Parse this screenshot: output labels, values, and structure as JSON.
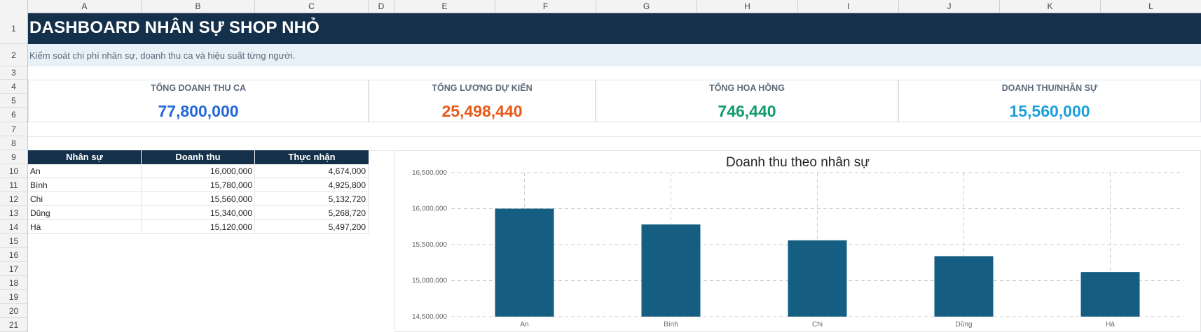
{
  "sheet": {
    "columns": [
      "A",
      "B",
      "C",
      "D",
      "E",
      "F",
      "G",
      "H",
      "I",
      "J",
      "K",
      "L"
    ],
    "rows": [
      "1",
      "2",
      "3",
      "4",
      "5",
      "6",
      "7",
      "8",
      "9",
      "10",
      "11",
      "12",
      "13",
      "14",
      "15",
      "16",
      "17",
      "18",
      "19",
      "20",
      "21"
    ]
  },
  "header": {
    "title": "DASHBOARD NHÂN SỰ SHOP NHỎ",
    "subtitle": "Kiểm soát chi phí nhân sự, doanh thu ca và hiệu suất từng người."
  },
  "kpis": [
    {
      "label": "TỔNG DOANH THU CA",
      "value": "77,800,000",
      "color": "#2467d8"
    },
    {
      "label": "TỔNG LƯƠNG DỰ KIẾN",
      "value": "25,498,440",
      "color": "#e8591a"
    },
    {
      "label": "TỔNG HOA HỒNG",
      "value": "746,440",
      "color": "#119b6a"
    },
    {
      "label": "DOANH THU/NHÂN SỰ",
      "value": "15,560,000",
      "color": "#1aa0db"
    }
  ],
  "table": {
    "headers": [
      "Nhân sự",
      "Doanh thu",
      "Thực nhận"
    ],
    "rows": [
      [
        "An",
        "16,000,000",
        "4,674,000"
      ],
      [
        "Bình",
        "15,780,000",
        "4,925,800"
      ],
      [
        "Chi",
        "15,560,000",
        "5,132,720"
      ],
      [
        "Dũng",
        "15,340,000",
        "5,268,720"
      ],
      [
        "Hà",
        "15,120,000",
        "5,497,200"
      ]
    ]
  },
  "chart_data": {
    "type": "bar",
    "title": "Doanh thu theo nhân sự",
    "categories": [
      "An",
      "Bình",
      "Chi",
      "Dũng",
      "Hà"
    ],
    "values": [
      16000000,
      15780000,
      15560000,
      15340000,
      15120000
    ],
    "ylim": [
      14500000,
      16500000
    ],
    "yticks": [
      "14,500,000",
      "15,000,000",
      "15,500,000",
      "16,000,000",
      "16,500,000"
    ],
    "ytick_values": [
      14500000,
      15000000,
      15500000,
      16000000,
      16500000
    ],
    "grid": true,
    "bar_color": "#155e82"
  }
}
